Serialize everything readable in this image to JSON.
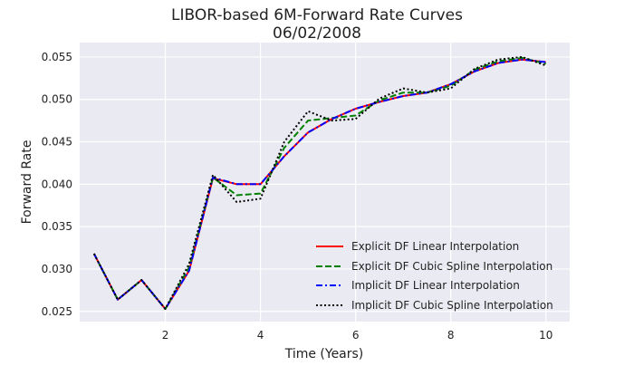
{
  "chart_data": {
    "type": "line",
    "title": "LIBOR-based 6M-Forward Rate Curves",
    "subtitle": "06/02/2008",
    "xlabel": "Time (Years)",
    "ylabel": "Forward Rate",
    "xlim": [
      0.2,
      10.5
    ],
    "ylim": [
      0.0238,
      0.0567
    ],
    "xticks": [
      2,
      4,
      6,
      8,
      10
    ],
    "xtick_labels": [
      "2",
      "4",
      "6",
      "8",
      "10"
    ],
    "yticks": [
      0.025,
      0.03,
      0.035,
      0.04,
      0.045,
      0.05,
      0.055
    ],
    "ytick_labels": [
      "0.025",
      "0.030",
      "0.035",
      "0.040",
      "0.045",
      "0.050",
      "0.055"
    ],
    "grid": true,
    "legend_position": "lower-right",
    "background_color": "#eaeaf2",
    "grid_color": "#ffffff",
    "x": [
      0.5,
      1.0,
      1.5,
      2.0,
      2.5,
      3.0,
      3.5,
      4.0,
      4.5,
      5.0,
      5.5,
      6.0,
      6.5,
      7.0,
      7.5,
      8.0,
      8.5,
      9.0,
      9.5,
      10.0
    ],
    "series": [
      {
        "name": "Explicit DF Linear Interpolation",
        "color": "#ff0000",
        "dash": "solid",
        "values": [
          0.0318,
          0.0264,
          0.0287,
          0.0253,
          0.0298,
          0.0407,
          0.04,
          0.04,
          0.0433,
          0.0461,
          0.0477,
          0.0489,
          0.0497,
          0.0504,
          0.0508,
          0.0518,
          0.0533,
          0.0543,
          0.0547,
          0.0544
        ]
      },
      {
        "name": "Explicit DF Cubic Spline Interpolation",
        "color": "#008000",
        "dash": "dashed",
        "values": [
          0.0318,
          0.0264,
          0.0287,
          0.0253,
          0.0302,
          0.0408,
          0.0387,
          0.0389,
          0.0443,
          0.0475,
          0.0478,
          0.0481,
          0.0499,
          0.0508,
          0.0508,
          0.0516,
          0.0535,
          0.0545,
          0.0549,
          0.0542
        ]
      },
      {
        "name": "Implicit DF Linear Interpolation",
        "color": "#0000ff",
        "dash": "dashdot",
        "values": [
          0.0318,
          0.0264,
          0.0287,
          0.0253,
          0.0298,
          0.0408,
          0.04,
          0.04,
          0.0433,
          0.0461,
          0.0477,
          0.0489,
          0.0497,
          0.0504,
          0.0508,
          0.0518,
          0.0533,
          0.0543,
          0.0547,
          0.0544
        ]
      },
      {
        "name": "Implicit DF Cubic Spline Interpolation",
        "color": "#000000",
        "dash": "dotted",
        "values": [
          0.0318,
          0.0264,
          0.0287,
          0.0253,
          0.0306,
          0.0411,
          0.0379,
          0.0383,
          0.045,
          0.0486,
          0.0475,
          0.0477,
          0.0501,
          0.0513,
          0.0508,
          0.0513,
          0.0536,
          0.0547,
          0.055,
          0.054
        ]
      }
    ]
  }
}
